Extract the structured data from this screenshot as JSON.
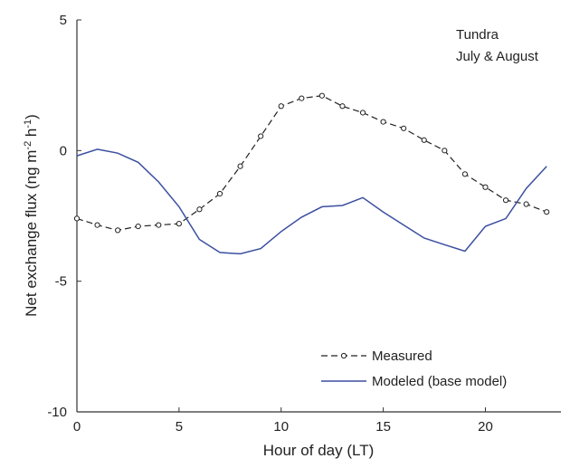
{
  "chart_data": {
    "type": "line",
    "xlabel": "Hour of day (LT)",
    "ylabel_prefix": "Net exchange flux (ng m",
    "ylabel_sup1": "-2",
    "ylabel_mid": " h",
    "ylabel_sup2": "-1",
    "ylabel_suffix": ")",
    "xlim": [
      0,
      23.7
    ],
    "ylim": [
      -10,
      5
    ],
    "xticks": [
      0,
      5,
      10,
      15,
      20
    ],
    "yticks": [
      -10,
      -5,
      0,
      5
    ],
    "xtick_labels": [
      "0",
      "5",
      "10",
      "15",
      "20"
    ],
    "ytick_labels": [
      "-10",
      "-5",
      "0",
      "5"
    ],
    "annotations": [
      "Tundra",
      "July & August"
    ],
    "legend_position": "bottom-right",
    "series": [
      {
        "name": "Measured",
        "style": "dashed-circle",
        "color": "#222222",
        "x": [
          0,
          1,
          2,
          3,
          4,
          5,
          6,
          7,
          8,
          9,
          10,
          11,
          12,
          13,
          14,
          15,
          16,
          17,
          18,
          19,
          20,
          21,
          22,
          23
        ],
        "y": [
          -2.6,
          -2.85,
          -3.05,
          -2.9,
          -2.85,
          -2.8,
          -2.25,
          -1.65,
          -0.6,
          0.55,
          1.7,
          2.0,
          2.1,
          1.7,
          1.45,
          1.1,
          0.85,
          0.4,
          0.0,
          -0.9,
          -1.4,
          -1.9,
          -2.05,
          -2.35
        ]
      },
      {
        "name": "Modeled (base model)",
        "style": "solid",
        "color": "#3b4fa0",
        "x": [
          0,
          1,
          2,
          3,
          4,
          5,
          6,
          7,
          8,
          9,
          10,
          11,
          12,
          13,
          14,
          15,
          16,
          17,
          18,
          19,
          20,
          21,
          22,
          23
        ],
        "y": [
          -0.2,
          0.05,
          -0.1,
          -0.45,
          -1.2,
          -2.15,
          -3.4,
          -3.9,
          -3.95,
          -3.75,
          -3.1,
          -2.55,
          -2.15,
          -2.1,
          -1.8,
          -2.35,
          -2.85,
          -3.35,
          -3.6,
          -3.85,
          -2.9,
          -2.6,
          -1.45,
          -0.6
        ]
      }
    ]
  }
}
